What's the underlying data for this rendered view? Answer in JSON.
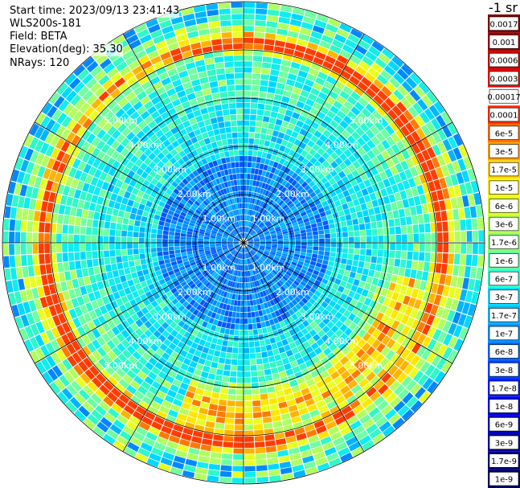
{
  "info": {
    "start_time": "Start time: 2023/09/13 23:41:43",
    "instrument": "WLS200s-181",
    "field": "Field: BETA",
    "elevation": "Elevation(deg): 35.30",
    "nrays": "NRays: 120"
  },
  "colorbar": {
    "unit": "-1 sr",
    "ticks": [
      "0.0017",
      "0.001",
      "0.0006",
      "0.0003",
      "0.00017",
      "0.0001",
      "6e-5",
      "3e-5",
      "1.7e-5",
      "1e-5",
      "6e-6",
      "3e-6",
      "1.7e-6",
      "1e-6",
      "6e-7",
      "3e-7",
      "1.7e-7",
      "1e-7",
      "6e-8",
      "3e-8",
      "1.7e-8",
      "1e-8",
      "6e-9",
      "3e-9",
      "1.7e-9",
      "1e-9"
    ],
    "colors": [
      "#7f0000",
      "#a00000",
      "#c80000",
      "#f00000",
      "#ffffff",
      "#ff2a00",
      "#ff6a00",
      "#ffa200",
      "#ffd400",
      "#fff700",
      "#e0ff1f",
      "#b6ff49",
      "#8cff73",
      "#5cffa3",
      "#2cffd3",
      "#00e0ff",
      "#00b8ff",
      "#0090ff",
      "#0068ff",
      "#0040ff",
      "#0018ff",
      "#0000e8",
      "#0000c4",
      "#0000a0",
      "#00007c",
      "#000064"
    ]
  },
  "range_labels": [
    "1.00km",
    "2.00km",
    "3.00km",
    "4.00km",
    "5.00km"
  ]
}
